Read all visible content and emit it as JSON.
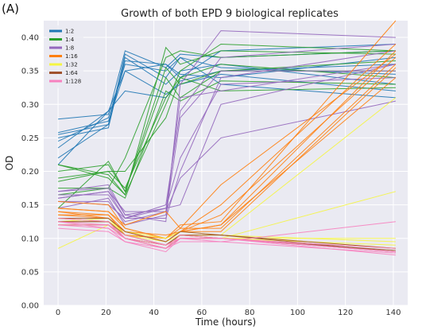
{
  "panel_label": "(A)",
  "chart_data": {
    "type": "line",
    "title": "Growth of both EPD 9 biological replicates",
    "xlabel": "Time (hours)",
    "ylabel": "OD",
    "xlim": [
      -6,
      146
    ],
    "ylim": [
      0.0,
      0.425
    ],
    "xticks": [
      0,
      20,
      40,
      60,
      80,
      100,
      120,
      140
    ],
    "yticks": [
      0.0,
      0.05,
      0.1,
      0.15,
      0.2,
      0.25,
      0.3,
      0.35,
      0.4
    ],
    "grid": true,
    "background": "#eaeaf2",
    "legend_position": "top-left",
    "x": [
      0,
      21,
      28,
      45,
      51,
      68,
      141
    ],
    "series": [
      {
        "name": "1:2",
        "color": "#1f77b4",
        "lines": [
          [
            0.255,
            0.27,
            0.375,
            0.34,
            0.37,
            0.355,
            0.345
          ],
          [
            0.25,
            0.265,
            0.37,
            0.33,
            0.35,
            0.36,
            0.33
          ],
          [
            0.235,
            0.29,
            0.35,
            0.315,
            0.33,
            0.345,
            0.32
          ],
          [
            0.21,
            0.29,
            0.32,
            0.31,
            0.335,
            0.35,
            0.36
          ],
          [
            0.278,
            0.285,
            0.38,
            0.355,
            0.375,
            0.37,
            0.38
          ],
          [
            0.22,
            0.27,
            0.365,
            0.36,
            0.34,
            0.38,
            0.39
          ],
          [
            0.245,
            0.28,
            0.36,
            0.35,
            0.37,
            0.33,
            0.31
          ],
          [
            0.258,
            0.275,
            0.35,
            0.36,
            0.345,
            0.34,
            0.37
          ]
        ]
      },
      {
        "name": "1:4",
        "color": "#2ca02c",
        "lines": [
          [
            0.21,
            0.195,
            0.165,
            0.385,
            0.36,
            0.38,
            0.375
          ],
          [
            0.2,
            0.21,
            0.17,
            0.34,
            0.31,
            0.35,
            0.35
          ],
          [
            0.185,
            0.2,
            0.2,
            0.28,
            0.34,
            0.32,
            0.325
          ],
          [
            0.165,
            0.175,
            0.22,
            0.37,
            0.38,
            0.37,
            0.38
          ],
          [
            0.21,
            0.19,
            0.165,
            0.3,
            0.35,
            0.39,
            0.38
          ],
          [
            0.145,
            0.215,
            0.17,
            0.355,
            0.33,
            0.35,
            0.365
          ],
          [
            0.19,
            0.2,
            0.175,
            0.31,
            0.34,
            0.36,
            0.34
          ],
          [
            0.175,
            0.175,
            0.16,
            0.32,
            0.305,
            0.335,
            0.33
          ]
        ]
      },
      {
        "name": "1:8",
        "color": "#9467bd",
        "lines": [
          [
            0.17,
            0.175,
            0.135,
            0.125,
            0.33,
            0.41,
            0.4
          ],
          [
            0.16,
            0.17,
            0.13,
            0.15,
            0.29,
            0.37,
            0.39
          ],
          [
            0.165,
            0.165,
            0.13,
            0.13,
            0.2,
            0.34,
            0.38
          ],
          [
            0.155,
            0.155,
            0.125,
            0.14,
            0.31,
            0.32,
            0.36
          ],
          [
            0.145,
            0.16,
            0.12,
            0.135,
            0.28,
            0.35,
            0.35
          ],
          [
            0.17,
            0.18,
            0.135,
            0.145,
            0.15,
            0.3,
            0.36
          ],
          [
            0.155,
            0.15,
            0.13,
            0.145,
            0.22,
            0.33,
            0.34
          ],
          [
            0.16,
            0.17,
            0.14,
            0.14,
            0.19,
            0.25,
            0.305
          ]
        ]
      },
      {
        "name": "1:16",
        "color": "#ff7f0e",
        "lines": [
          [
            0.145,
            0.14,
            0.115,
            0.1,
            0.12,
            0.125,
            0.425
          ],
          [
            0.135,
            0.135,
            0.11,
            0.105,
            0.11,
            0.15,
            0.39
          ],
          [
            0.14,
            0.13,
            0.11,
            0.095,
            0.11,
            0.12,
            0.38
          ],
          [
            0.13,
            0.125,
            0.105,
            0.1,
            0.11,
            0.135,
            0.37
          ],
          [
            0.145,
            0.14,
            0.12,
            0.14,
            0.115,
            0.115,
            0.36
          ],
          [
            0.14,
            0.135,
            0.105,
            0.1,
            0.11,
            0.11,
            0.355
          ],
          [
            0.155,
            0.15,
            0.115,
            0.1,
            0.115,
            0.18,
            0.375
          ],
          [
            0.135,
            0.13,
            0.11,
            0.095,
            0.11,
            0.12,
            0.34
          ]
        ]
      },
      {
        "name": "1:32",
        "color": "#f5f542",
        "lines": [
          [
            0.085,
            0.12,
            0.1,
            0.09,
            0.105,
            0.105,
            0.31
          ],
          [
            0.13,
            0.125,
            0.105,
            0.095,
            0.105,
            0.1,
            0.17
          ],
          [
            0.12,
            0.12,
            0.1,
            0.09,
            0.1,
            0.1,
            0.1
          ],
          [
            0.125,
            0.13,
            0.105,
            0.09,
            0.1,
            0.1,
            0.09
          ],
          [
            0.12,
            0.12,
            0.1,
            0.085,
            0.105,
            0.105,
            0.095
          ],
          [
            0.13,
            0.125,
            0.11,
            0.1,
            0.11,
            0.105,
            0.085
          ]
        ]
      },
      {
        "name": "1:64",
        "color": "#a0522d",
        "lines": [
          [
            0.125,
            0.125,
            0.105,
            0.09,
            0.105,
            0.105,
            0.085
          ],
          [
            0.13,
            0.13,
            0.11,
            0.095,
            0.11,
            0.105,
            0.08
          ],
          [
            0.12,
            0.12,
            0.1,
            0.085,
            0.1,
            0.1,
            0.08
          ],
          [
            0.125,
            0.125,
            0.1,
            0.09,
            0.105,
            0.1,
            0.082
          ]
        ]
      },
      {
        "name": "1:128",
        "color": "#f781bf",
        "lines": [
          [
            0.125,
            0.115,
            0.1,
            0.085,
            0.1,
            0.1,
            0.08
          ],
          [
            0.12,
            0.115,
            0.095,
            0.08,
            0.1,
            0.095,
            0.078
          ],
          [
            0.115,
            0.11,
            0.095,
            0.085,
            0.095,
            0.095,
            0.125
          ],
          [
            0.12,
            0.12,
            0.1,
            0.09,
            0.1,
            0.1,
            0.08
          ],
          [
            0.13,
            0.125,
            0.1,
            0.085,
            0.105,
            0.1,
            0.075
          ],
          [
            0.125,
            0.12,
            0.105,
            0.09,
            0.1,
            0.1,
            0.085
          ]
        ]
      }
    ]
  }
}
